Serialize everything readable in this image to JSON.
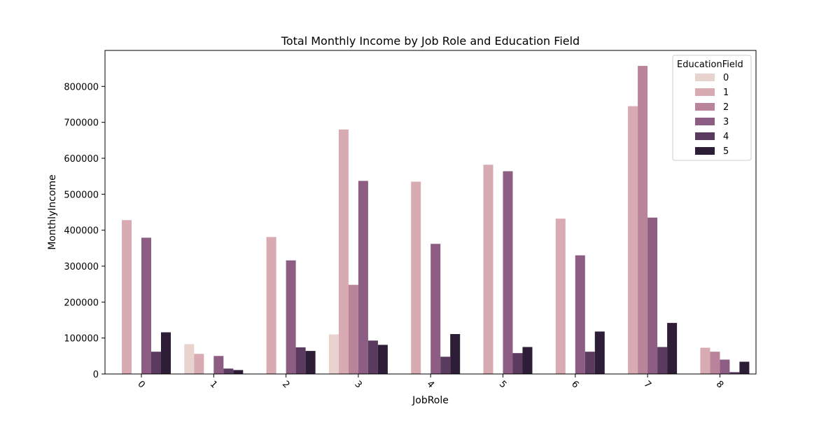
{
  "chart_data": {
    "type": "bar",
    "title": "Total Monthly Income by Job Role and Education Field",
    "xlabel": "JobRole",
    "ylabel": "MonthlyIncome",
    "categories": [
      "0",
      "1",
      "2",
      "3",
      "4",
      "5",
      "6",
      "7",
      "8"
    ],
    "ylim": [
      0,
      900000
    ],
    "yticks": [
      0,
      100000,
      200000,
      300000,
      400000,
      500000,
      600000,
      700000,
      800000
    ],
    "ytick_labels": [
      "0",
      "100000",
      "200000",
      "300000",
      "400000",
      "500000",
      "600000",
      "700000",
      "800000"
    ],
    "grid": false,
    "legend": {
      "title": "EducationField",
      "placement": "top-right"
    },
    "series": [
      {
        "name": "0",
        "color": "#e8d3cf",
        "values": [
          0,
          83000,
          0,
          110000,
          0,
          0,
          0,
          0,
          0
        ]
      },
      {
        "name": "1",
        "color": "#d7abb1",
        "values": [
          428000,
          56000,
          381000,
          680000,
          535000,
          582000,
          432000,
          745000,
          73000
        ]
      },
      {
        "name": "2",
        "color": "#b98399",
        "values": [
          0,
          0,
          0,
          248000,
          0,
          0,
          0,
          857000,
          62000
        ]
      },
      {
        "name": "3",
        "color": "#8d5d83",
        "values": [
          379000,
          50000,
          316000,
          537000,
          362000,
          564000,
          330000,
          435000,
          40000
        ]
      },
      {
        "name": "4",
        "color": "#5a3a5e",
        "values": [
          62000,
          15000,
          74000,
          93000,
          48000,
          58000,
          62000,
          75000,
          5000
        ]
      },
      {
        "name": "5",
        "color": "#2d1d36",
        "values": [
          116000,
          11000,
          64000,
          81000,
          111000,
          75000,
          118000,
          142000,
          34000
        ]
      }
    ]
  }
}
